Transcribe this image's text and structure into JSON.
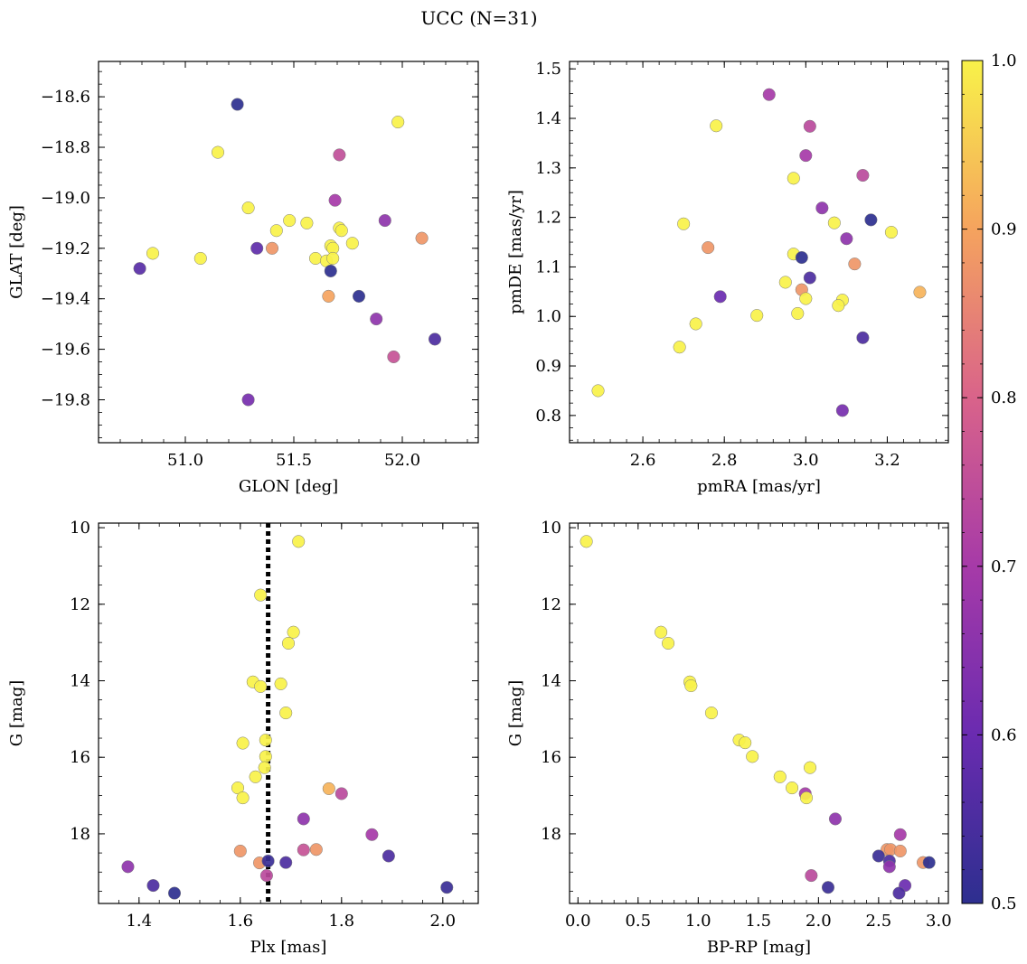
{
  "figure": {
    "title": "UCC (N=31)"
  },
  "colorbar": {
    "min": 0.5,
    "max": 1.0,
    "ticks": [
      "0.5",
      "0.6",
      "0.7",
      "0.8",
      "0.9",
      "1.0"
    ],
    "colormap": "plasma",
    "colors": [
      "#2d2f8f",
      "#6a2bb0",
      "#a63aa8",
      "#d9638a",
      "#f5a35e",
      "#f8f249"
    ]
  },
  "chart_data": [
    {
      "type": "scatter",
      "xlabel": "GLON [deg]",
      "ylabel": "GLAT [deg]",
      "xlim": [
        50.6,
        52.35
      ],
      "ylim": [
        -19.97,
        -18.46
      ],
      "xticks": [
        "51.0",
        "51.5",
        "52.0"
      ],
      "yticks": [
        "−18.6",
        "−18.8",
        "−19.0",
        "−19.2",
        "−19.4",
        "−19.6",
        "−19.8"
      ],
      "points": [
        {
          "x": 51.24,
          "y": -18.63,
          "p": 0.5
        },
        {
          "x": 51.15,
          "y": -18.82,
          "p": 1.0
        },
        {
          "x": 51.98,
          "y": -18.7,
          "p": 1.0
        },
        {
          "x": 51.71,
          "y": -18.83,
          "p": 0.75
        },
        {
          "x": 51.29,
          "y": -19.04,
          "p": 1.0
        },
        {
          "x": 51.69,
          "y": -19.01,
          "p": 0.7
        },
        {
          "x": 51.92,
          "y": -19.09,
          "p": 0.66
        },
        {
          "x": 51.48,
          "y": -19.09,
          "p": 1.0
        },
        {
          "x": 51.56,
          "y": -19.1,
          "p": 1.0
        },
        {
          "x": 51.42,
          "y": -19.13,
          "p": 1.0
        },
        {
          "x": 51.71,
          "y": -19.12,
          "p": 1.0
        },
        {
          "x": 51.72,
          "y": -19.13,
          "p": 1.0
        },
        {
          "x": 51.33,
          "y": -19.2,
          "p": 0.58
        },
        {
          "x": 51.4,
          "y": -19.2,
          "p": 0.88
        },
        {
          "x": 51.67,
          "y": -19.19,
          "p": 1.0
        },
        {
          "x": 51.68,
          "y": -19.2,
          "p": 1.0
        },
        {
          "x": 51.77,
          "y": -19.18,
          "p": 1.0
        },
        {
          "x": 52.09,
          "y": -19.16,
          "p": 0.88
        },
        {
          "x": 50.85,
          "y": -19.22,
          "p": 1.0
        },
        {
          "x": 51.07,
          "y": -19.24,
          "p": 1.0
        },
        {
          "x": 51.6,
          "y": -19.24,
          "p": 1.0
        },
        {
          "x": 51.65,
          "y": -19.25,
          "p": 1.0
        },
        {
          "x": 51.68,
          "y": -19.24,
          "p": 1.0
        },
        {
          "x": 50.79,
          "y": -19.28,
          "p": 0.57
        },
        {
          "x": 51.67,
          "y": -19.29,
          "p": 0.5
        },
        {
          "x": 51.66,
          "y": -19.39,
          "p": 0.9
        },
        {
          "x": 51.8,
          "y": -19.39,
          "p": 0.5
        },
        {
          "x": 51.88,
          "y": -19.48,
          "p": 0.66
        },
        {
          "x": 52.15,
          "y": -19.56,
          "p": 0.55
        },
        {
          "x": 51.96,
          "y": -19.63,
          "p": 0.76
        },
        {
          "x": 51.29,
          "y": -19.8,
          "p": 0.62
        }
      ]
    },
    {
      "type": "scatter",
      "xlabel": "pmRA [mas/yr]",
      "ylabel": "pmDE [mas/yr]",
      "xlim": [
        2.42,
        3.35
      ],
      "ylim": [
        0.745,
        1.515
      ],
      "xticks": [
        "2.6",
        "2.8",
        "3.0",
        "3.2"
      ],
      "yticks": [
        "0.8",
        "0.9",
        "1.0",
        "1.1",
        "1.2",
        "1.3",
        "1.4",
        "1.5"
      ],
      "points": [
        {
          "x": 2.91,
          "y": 1.448,
          "p": 0.7
        },
        {
          "x": 3.01,
          "y": 1.384,
          "p": 0.74
        },
        {
          "x": 2.78,
          "y": 1.385,
          "p": 1.0
        },
        {
          "x": 3.0,
          "y": 1.325,
          "p": 0.7
        },
        {
          "x": 3.14,
          "y": 1.285,
          "p": 0.74
        },
        {
          "x": 2.97,
          "y": 1.279,
          "p": 1.0
        },
        {
          "x": 3.04,
          "y": 1.219,
          "p": 0.66
        },
        {
          "x": 2.7,
          "y": 1.187,
          "p": 1.0
        },
        {
          "x": 3.16,
          "y": 1.195,
          "p": 0.5
        },
        {
          "x": 3.07,
          "y": 1.189,
          "p": 1.0
        },
        {
          "x": 3.21,
          "y": 1.17,
          "p": 1.0
        },
        {
          "x": 3.1,
          "y": 1.157,
          "p": 0.66
        },
        {
          "x": 2.76,
          "y": 1.139,
          "p": 0.88
        },
        {
          "x": 2.97,
          "y": 1.126,
          "p": 1.0
        },
        {
          "x": 2.99,
          "y": 1.119,
          "p": 0.5
        },
        {
          "x": 3.12,
          "y": 1.106,
          "p": 0.88
        },
        {
          "x": 3.01,
          "y": 1.078,
          "p": 0.55
        },
        {
          "x": 2.95,
          "y": 1.069,
          "p": 1.0
        },
        {
          "x": 2.99,
          "y": 1.054,
          "p": 0.88
        },
        {
          "x": 3.28,
          "y": 1.049,
          "p": 0.92
        },
        {
          "x": 2.79,
          "y": 1.04,
          "p": 0.6
        },
        {
          "x": 3.0,
          "y": 1.036,
          "p": 1.0
        },
        {
          "x": 3.09,
          "y": 1.033,
          "p": 1.0
        },
        {
          "x": 3.08,
          "y": 1.022,
          "p": 1.0
        },
        {
          "x": 2.98,
          "y": 1.006,
          "p": 1.0
        },
        {
          "x": 2.88,
          "y": 1.002,
          "p": 1.0
        },
        {
          "x": 2.73,
          "y": 0.985,
          "p": 1.0
        },
        {
          "x": 3.14,
          "y": 0.957,
          "p": 0.55
        },
        {
          "x": 2.69,
          "y": 0.938,
          "p": 1.0
        },
        {
          "x": 2.49,
          "y": 0.85,
          "p": 1.0
        },
        {
          "x": 3.09,
          "y": 0.81,
          "p": 0.62
        }
      ]
    },
    {
      "type": "scatter",
      "xlabel": "Plx [mas]",
      "ylabel": "G [mag]",
      "xlim": [
        1.32,
        2.07
      ],
      "ylim": [
        19.82,
        9.88
      ],
      "xticks": [
        "1.4",
        "1.6",
        "1.8",
        "2.0"
      ],
      "yticks": [
        "10",
        "12",
        "14",
        "16",
        "18"
      ],
      "vline": {
        "x": 1.655,
        "style": "dotted"
      },
      "points": [
        {
          "x": 1.715,
          "y": 10.36,
          "p": 1.0
        },
        {
          "x": 1.64,
          "y": 11.76,
          "p": 1.0
        },
        {
          "x": 1.705,
          "y": 12.73,
          "p": 1.0
        },
        {
          "x": 1.695,
          "y": 13.02,
          "p": 1.0
        },
        {
          "x": 1.625,
          "y": 14.03,
          "p": 1.0
        },
        {
          "x": 1.68,
          "y": 14.08,
          "p": 1.0
        },
        {
          "x": 1.64,
          "y": 14.15,
          "p": 1.0
        },
        {
          "x": 1.69,
          "y": 14.84,
          "p": 1.0
        },
        {
          "x": 1.605,
          "y": 15.63,
          "p": 1.0
        },
        {
          "x": 1.65,
          "y": 15.55,
          "p": 1.0
        },
        {
          "x": 1.65,
          "y": 15.98,
          "p": 1.0
        },
        {
          "x": 1.648,
          "y": 16.27,
          "p": 1.0
        },
        {
          "x": 1.63,
          "y": 16.51,
          "p": 1.0
        },
        {
          "x": 1.595,
          "y": 16.8,
          "p": 1.0
        },
        {
          "x": 1.605,
          "y": 17.06,
          "p": 1.0
        },
        {
          "x": 1.775,
          "y": 16.82,
          "p": 0.92
        },
        {
          "x": 1.8,
          "y": 16.95,
          "p": 0.74
        },
        {
          "x": 1.725,
          "y": 17.61,
          "p": 0.66
        },
        {
          "x": 1.86,
          "y": 18.02,
          "p": 0.7
        },
        {
          "x": 1.6,
          "y": 18.45,
          "p": 0.88
        },
        {
          "x": 1.725,
          "y": 18.42,
          "p": 0.76
        },
        {
          "x": 1.75,
          "y": 18.41,
          "p": 0.88
        },
        {
          "x": 1.893,
          "y": 18.58,
          "p": 0.55
        },
        {
          "x": 1.638,
          "y": 18.76,
          "p": 0.88
        },
        {
          "x": 1.655,
          "y": 18.71,
          "p": 0.52
        },
        {
          "x": 1.69,
          "y": 18.75,
          "p": 0.55
        },
        {
          "x": 1.378,
          "y": 18.86,
          "p": 0.66
        },
        {
          "x": 1.652,
          "y": 19.09,
          "p": 0.74
        },
        {
          "x": 1.428,
          "y": 19.35,
          "p": 0.55
        },
        {
          "x": 1.47,
          "y": 19.55,
          "p": 0.5
        },
        {
          "x": 2.008,
          "y": 19.4,
          "p": 0.52
        }
      ]
    },
    {
      "type": "scatter",
      "xlabel": "BP-RP [mag]",
      "ylabel": "G [mag]",
      "xlim": [
        -0.07,
        3.08
      ],
      "ylim": [
        19.82,
        9.88
      ],
      "xticks": [
        "0.0",
        "0.5",
        "1.0",
        "1.5",
        "2.0",
        "2.5",
        "3.0"
      ],
      "yticks": [
        "10",
        "12",
        "14",
        "16",
        "18"
      ],
      "points": [
        {
          "x": 0.07,
          "y": 10.36,
          "p": 1.0
        },
        {
          "x": 0.69,
          "y": 12.73,
          "p": 1.0
        },
        {
          "x": 0.75,
          "y": 13.02,
          "p": 1.0
        },
        {
          "x": 0.93,
          "y": 14.03,
          "p": 1.0
        },
        {
          "x": 0.94,
          "y": 14.13,
          "p": 1.0
        },
        {
          "x": 1.11,
          "y": 14.84,
          "p": 1.0
        },
        {
          "x": 1.34,
          "y": 15.55,
          "p": 1.0
        },
        {
          "x": 1.39,
          "y": 15.62,
          "p": 1.0
        },
        {
          "x": 1.45,
          "y": 15.98,
          "p": 1.0
        },
        {
          "x": 1.68,
          "y": 16.51,
          "p": 1.0
        },
        {
          "x": 1.78,
          "y": 16.8,
          "p": 1.0
        },
        {
          "x": 1.93,
          "y": 16.27,
          "p": 1.0
        },
        {
          "x": 1.89,
          "y": 16.95,
          "p": 0.7
        },
        {
          "x": 1.9,
          "y": 17.06,
          "p": 1.0
        },
        {
          "x": 2.14,
          "y": 17.61,
          "p": 0.66
        },
        {
          "x": 2.68,
          "y": 18.02,
          "p": 0.7
        },
        {
          "x": 2.57,
          "y": 18.41,
          "p": 0.88
        },
        {
          "x": 2.6,
          "y": 18.41,
          "p": 0.88
        },
        {
          "x": 2.68,
          "y": 18.45,
          "p": 0.88
        },
        {
          "x": 2.5,
          "y": 18.58,
          "p": 0.52
        },
        {
          "x": 2.59,
          "y": 18.71,
          "p": 0.55
        },
        {
          "x": 2.87,
          "y": 18.75,
          "p": 0.88
        },
        {
          "x": 2.92,
          "y": 18.75,
          "p": 0.5
        },
        {
          "x": 2.59,
          "y": 18.86,
          "p": 0.66
        },
        {
          "x": 1.94,
          "y": 19.09,
          "p": 0.74
        },
        {
          "x": 2.72,
          "y": 19.35,
          "p": 0.6
        },
        {
          "x": 2.08,
          "y": 19.4,
          "p": 0.52
        },
        {
          "x": 2.67,
          "y": 19.55,
          "p": 0.55
        }
      ]
    }
  ]
}
